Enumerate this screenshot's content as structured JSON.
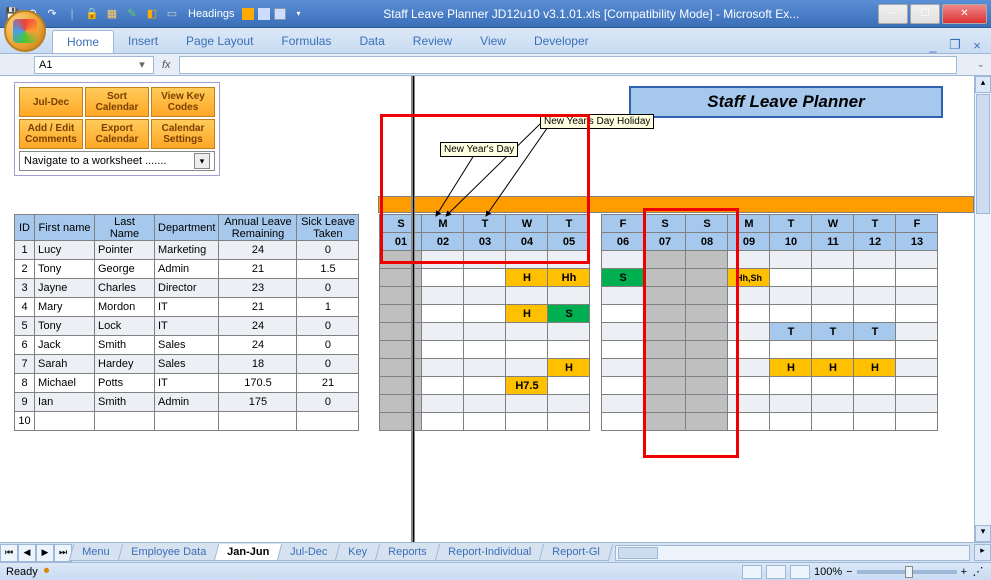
{
  "window": {
    "title": "Staff Leave Planner JD12u10 v3.1.01.xls  [Compatibility Mode] - Microsoft Ex...",
    "qat_dropdown_label": "Headings"
  },
  "ribbon": {
    "tabs": [
      "Home",
      "Insert",
      "Page Layout",
      "Formulas",
      "Data",
      "Review",
      "View",
      "Developer"
    ],
    "active": 0
  },
  "formula_bar": {
    "name_box": "A1",
    "fx": "fx"
  },
  "controls": {
    "row1": [
      "Jul-Dec",
      "Sort Calendar",
      "View Key Codes"
    ],
    "row2": [
      "Add / Edit Comments",
      "Export Calendar",
      "Calendar Settings"
    ],
    "navigate": "Navigate to a worksheet ......."
  },
  "planner_title": "Staff Leave Planner",
  "callouts": {
    "c1": "New Year's Day Holiday",
    "c2": "New Year's Day"
  },
  "table": {
    "headers": [
      "ID",
      "First name",
      "Last Name",
      "Department",
      "Annual Leave Remaining",
      "Sick Leave Taken"
    ],
    "days": [
      "S",
      "M",
      "T",
      "W",
      "T",
      "F",
      "S",
      "S",
      "M",
      "T",
      "W",
      "T",
      "F"
    ],
    "dates": [
      "01",
      "02",
      "03",
      "04",
      "05",
      "06",
      "07",
      "08",
      "09",
      "10",
      "11",
      "12",
      "13"
    ],
    "weekend_cols": [
      0,
      6,
      7
    ],
    "rows": [
      {
        "id": "1",
        "first": "Lucy",
        "last": "Pointer",
        "dept": "Marketing",
        "annual": "24",
        "sick": "0",
        "codes": {}
      },
      {
        "id": "2",
        "first": "Tony",
        "last": "George",
        "dept": "Admin",
        "annual": "21",
        "sick": "1.5",
        "codes": {
          "3": {
            "t": "H",
            "c": "H"
          },
          "4": {
            "t": "Hh",
            "c": "H"
          },
          "5": {
            "t": "S",
            "c": "S"
          },
          "8": {
            "t": "Hh,Sh",
            "c": "mix"
          }
        }
      },
      {
        "id": "3",
        "first": "Jayne",
        "last": "Charles",
        "dept": "Director",
        "annual": "23",
        "sick": "0",
        "codes": {}
      },
      {
        "id": "4",
        "first": "Mary",
        "last": "Mordon",
        "dept": "IT",
        "annual": "21",
        "sick": "1",
        "codes": {
          "3": {
            "t": "H",
            "c": "H"
          },
          "4": {
            "t": "S",
            "c": "S"
          }
        }
      },
      {
        "id": "5",
        "first": "Tony",
        "last": "Lock",
        "dept": "IT",
        "annual": "24",
        "sick": "0",
        "codes": {
          "9": {
            "t": "T",
            "c": "T"
          },
          "10": {
            "t": "T",
            "c": "T"
          },
          "11": {
            "t": "T",
            "c": "T"
          }
        }
      },
      {
        "id": "6",
        "first": "Jack",
        "last": "Smith",
        "dept": "Sales",
        "annual": "24",
        "sick": "0",
        "codes": {}
      },
      {
        "id": "7",
        "first": "Sarah",
        "last": "Hardey",
        "dept": "Sales",
        "annual": "18",
        "sick": "0",
        "codes": {
          "4": {
            "t": "H",
            "c": "H"
          },
          "9": {
            "t": "H",
            "c": "H"
          },
          "10": {
            "t": "H",
            "c": "H"
          },
          "11": {
            "t": "H",
            "c": "H"
          }
        }
      },
      {
        "id": "8",
        "first": "Michael",
        "last": "Potts",
        "dept": "IT",
        "annual": "170.5",
        "sick": "21",
        "codes": {
          "3": {
            "t": "H7.5",
            "c": "H"
          }
        }
      },
      {
        "id": "9",
        "first": "Ian",
        "last": "Smith",
        "dept": "Admin",
        "annual": "175",
        "sick": "0",
        "codes": {}
      },
      {
        "id": "10",
        "first": "",
        "last": "",
        "dept": "",
        "annual": "",
        "sick": "",
        "codes": {}
      }
    ]
  },
  "sheet_tabs": {
    "tabs": [
      "Menu",
      "Employee Data",
      "Jan-Jun",
      "Jul-Dec",
      "Key",
      "Reports",
      "Report-Individual",
      "Report-Gl"
    ],
    "active": 2
  },
  "statusbar": {
    "ready": "Ready",
    "zoom": "100%",
    "zoom_minus": "−",
    "zoom_plus": "+"
  },
  "colors": {
    "accent": "#a6c8ec",
    "orange": "#ff9c00",
    "code_H": "#ffc000",
    "code_S": "#00b050",
    "code_T": "#a6c8ec",
    "weekend": "#bfbfbf",
    "red_highlight": "#e00000"
  }
}
